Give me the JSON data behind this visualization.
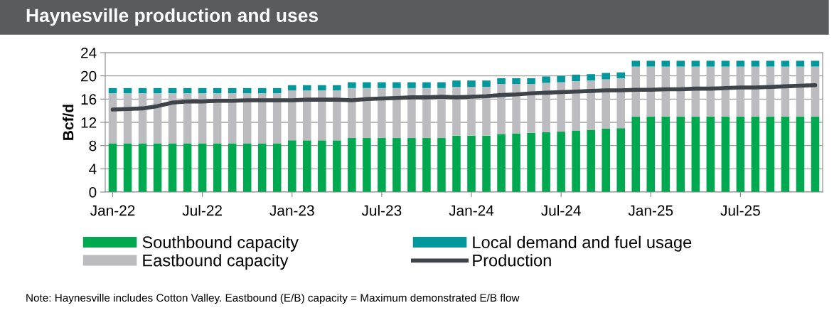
{
  "chart_data": {
    "type": "bar",
    "stacked": true,
    "title": "Haynesville production and uses",
    "ylabel": "Bcf/d",
    "categories": [
      "Jan-22",
      null,
      null,
      null,
      null,
      null,
      "Jul-22",
      null,
      null,
      null,
      null,
      null,
      "Jan-23",
      null,
      null,
      null,
      null,
      null,
      "Jul-23",
      null,
      null,
      null,
      null,
      null,
      "Jan-24",
      null,
      null,
      null,
      null,
      null,
      "Jul-24",
      null,
      null,
      null,
      null,
      null,
      "Jan-25",
      null,
      null,
      null,
      null,
      null,
      "Jul-25",
      null,
      null,
      null,
      null,
      null
    ],
    "series": [
      {
        "name": "Southbound capacity",
        "color": "#00a94f",
        "values": [
          8.4,
          8.4,
          8.4,
          8.4,
          8.4,
          8.4,
          8.4,
          8.4,
          8.4,
          8.4,
          8.4,
          8.4,
          8.9,
          8.9,
          8.9,
          8.9,
          9.3,
          9.3,
          9.3,
          9.3,
          9.3,
          9.3,
          9.3,
          9.7,
          9.7,
          9.7,
          10.0,
          10.1,
          10.2,
          10.3,
          10.4,
          10.6,
          10.7,
          10.9,
          11.0,
          13.0,
          13.0,
          13.0,
          13.0,
          13.0,
          13.0,
          13.0,
          13.0,
          13.0,
          13.0,
          13.0,
          13.0,
          13.0
        ]
      },
      {
        "name": "Eastbound capacity",
        "color": "#bcbcc0",
        "values": [
          8.6,
          8.6,
          8.6,
          8.6,
          8.6,
          8.6,
          8.6,
          8.6,
          8.6,
          8.6,
          8.6,
          8.6,
          8.6,
          8.6,
          8.6,
          8.6,
          8.6,
          8.6,
          8.6,
          8.6,
          8.6,
          8.6,
          8.6,
          8.4,
          8.4,
          8.4,
          8.6,
          8.5,
          8.4,
          8.5,
          8.5,
          8.5,
          8.5,
          8.5,
          8.6,
          8.6,
          8.6,
          8.6,
          8.6,
          8.6,
          8.6,
          8.6,
          8.6,
          8.6,
          8.6,
          8.6,
          8.6,
          8.6
        ]
      },
      {
        "name": "Local demand and fuel usage",
        "color": "#00979d",
        "values": [
          0.9,
          0.9,
          0.9,
          0.9,
          0.9,
          0.9,
          0.9,
          0.9,
          0.9,
          0.9,
          0.9,
          0.9,
          0.9,
          0.9,
          0.9,
          0.9,
          1.0,
          1.0,
          1.0,
          1.0,
          1.0,
          1.0,
          1.0,
          1.1,
          1.1,
          1.1,
          1.0,
          1.0,
          1.0,
          1.1,
          1.1,
          1.1,
          1.1,
          1.1,
          1.0,
          1.0,
          1.0,
          1.0,
          1.0,
          1.0,
          1.0,
          1.0,
          1.0,
          1.0,
          1.0,
          1.0,
          1.0,
          1.0
        ]
      },
      {
        "name": "Production",
        "type": "line",
        "color": "#3f444a",
        "values": [
          14.2,
          14.3,
          14.4,
          14.8,
          15.4,
          15.6,
          15.6,
          15.7,
          15.7,
          15.8,
          15.8,
          15.8,
          15.8,
          15.9,
          15.9,
          15.9,
          15.8,
          16.0,
          16.1,
          16.2,
          16.3,
          16.3,
          16.4,
          16.3,
          16.4,
          16.5,
          16.7,
          16.8,
          17.0,
          17.1,
          17.2,
          17.3,
          17.4,
          17.5,
          17.5,
          17.6,
          17.6,
          17.7,
          17.7,
          17.8,
          17.8,
          17.9,
          18.0,
          18.0,
          18.1,
          18.2,
          18.3,
          18.4
        ]
      }
    ],
    "ylim": [
      0,
      24
    ],
    "yticks": [
      0,
      4,
      8,
      12,
      16,
      20,
      24
    ],
    "grid": "y",
    "legend": "bottom",
    "annotations": [
      "Note: Haynesville includes Cotton Valley. Eastbound (E/B) capacity = Maximum demonstrated E/B flow"
    ]
  }
}
